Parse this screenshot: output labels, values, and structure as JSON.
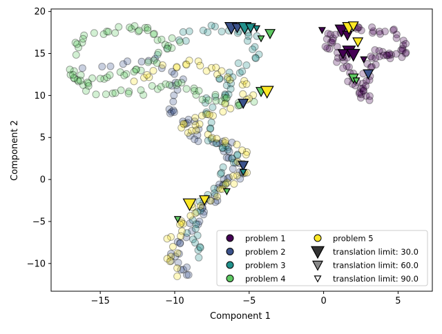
{
  "chart_data": {
    "type": "scatter",
    "title": "",
    "xlabel": "Component 1",
    "ylabel": "Component 2",
    "xlim": [
      -18.3,
      7.3
    ],
    "ylim": [
      -13.3,
      20.3
    ],
    "xticks": [
      -15,
      -10,
      -5,
      0,
      5
    ],
    "yticks": [
      -10,
      -5,
      0,
      5,
      10,
      15,
      20
    ],
    "grid": false,
    "legend_position": "lower-right",
    "colors": {
      "problem 1": "#440154",
      "problem 2": "#3b528b",
      "problem 3": "#21918c",
      "problem 4": "#5ec962",
      "problem 5": "#fde725",
      "triangle": "#333333"
    },
    "legend": [
      {
        "label": "problem 1",
        "marker": "circle",
        "color": "#440154"
      },
      {
        "label": "problem 2",
        "marker": "circle",
        "color": "#3b528b"
      },
      {
        "label": "problem 3",
        "marker": "circle",
        "color": "#21918c"
      },
      {
        "label": "problem 4",
        "marker": "circle",
        "color": "#5ec962"
      },
      {
        "label": "problem 5",
        "marker": "circle",
        "color": "#fde725"
      },
      {
        "label": "translation limit: 30.0",
        "marker": "triangle-large",
        "color": "#333333"
      },
      {
        "label": "translation limit: 60.0",
        "marker": "triangle-medium",
        "color": "#888888"
      },
      {
        "label": "translation limit: 90.0",
        "marker": "triangle-small",
        "color": "#ffffff"
      }
    ],
    "series": [
      {
        "name": "problem 1",
        "color": "#440154",
        "path": [
          [
            1.5,
            18
          ],
          [
            3,
            17.8
          ],
          [
            5,
            17.5
          ],
          [
            5.7,
            15.2
          ],
          [
            4.5,
            14.8
          ],
          [
            3.5,
            15.2
          ],
          [
            3.1,
            13.5
          ],
          [
            2.8,
            11
          ],
          [
            2.9,
            9.5
          ],
          [
            2.2,
            11.5
          ],
          [
            1.6,
            13.5
          ],
          [
            0.9,
            14.8
          ],
          [
            0.3,
            16.5
          ],
          [
            0.8,
            17.8
          ]
        ],
        "points_per_segment": 7
      },
      {
        "name": "problem 2",
        "color": "#3b528b",
        "path": [
          [
            -16,
            13
          ],
          [
            -12,
            14.5
          ],
          [
            -9.5,
            12
          ],
          [
            -10.5,
            8.2
          ],
          [
            -9,
            7
          ],
          [
            -8.5,
            5
          ],
          [
            -6.5,
            4.5
          ],
          [
            -6,
            2.5
          ],
          [
            -5.5,
            0.5
          ],
          [
            -7,
            -0.5
          ],
          [
            -7.5,
            -2.5
          ],
          [
            -8.5,
            -4.5
          ],
          [
            -9.5,
            -7
          ],
          [
            -10,
            -10
          ],
          [
            -9,
            -11.5
          ]
        ],
        "points_per_segment": 6
      },
      {
        "name": "problem 3",
        "color": "#21918c",
        "path": [
          [
            -11,
            15
          ],
          [
            -9,
            17.5
          ],
          [
            -7,
            18
          ],
          [
            -5,
            17.5
          ],
          [
            -4.5,
            15
          ],
          [
            -5.5,
            13
          ],
          [
            -7,
            12
          ],
          [
            -6,
            10.5
          ],
          [
            -7.5,
            9.5
          ],
          [
            -8,
            6.5
          ],
          [
            -7,
            4
          ],
          [
            -6,
            3
          ],
          [
            -6.5,
            0.5
          ],
          [
            -8,
            -2
          ],
          [
            -8.5,
            -5
          ],
          [
            -9,
            -7
          ],
          [
            -8,
            -9
          ]
        ],
        "points_per_segment": 5
      },
      {
        "name": "problem 4",
        "color": "#5ec962",
        "path": [
          [
            -17,
            15
          ],
          [
            -15.5,
            17.5
          ],
          [
            -13,
            18
          ],
          [
            -11.5,
            17.5
          ],
          [
            -10,
            16
          ],
          [
            -12,
            13.5
          ],
          [
            -14,
            12.5
          ],
          [
            -16.5,
            11.5
          ],
          [
            -17,
            13
          ],
          [
            -15,
            10
          ],
          [
            -12,
            10.5
          ],
          [
            -10,
            11.5
          ],
          [
            -8,
            10
          ],
          [
            -6.5,
            9.5
          ],
          [
            -5,
            9
          ]
        ],
        "points_per_segment": 7
      },
      {
        "name": "problem 5",
        "color": "#fde725",
        "path": [
          [
            -13,
            12
          ],
          [
            -11,
            13
          ],
          [
            -9,
            14
          ],
          [
            -7.5,
            13
          ],
          [
            -6,
            12
          ],
          [
            -5,
            10
          ],
          [
            -7,
            8
          ],
          [
            -8.5,
            7
          ],
          [
            -9.5,
            6
          ],
          [
            -7,
            5
          ],
          [
            -5.5,
            3.5
          ],
          [
            -5.3,
            1
          ],
          [
            -6.5,
            -0.5
          ],
          [
            -8,
            -2.5
          ],
          [
            -9,
            -4.5
          ],
          [
            -10,
            -6
          ],
          [
            -10.2,
            -9
          ],
          [
            -10,
            -11.5
          ]
        ],
        "points_per_segment": 5
      }
    ],
    "triangles": [
      {
        "x": -6.2,
        "y": 18.1,
        "problem": "problem 2",
        "limit": 30.0
      },
      {
        "x": -5.8,
        "y": 18.1,
        "problem": "problem 2",
        "limit": 60.0
      },
      {
        "x": -5.3,
        "y": 18.1,
        "problem": "problem 3",
        "limit": 30.0
      },
      {
        "x": -4.9,
        "y": 18.1,
        "problem": "problem 3",
        "limit": 60.0
      },
      {
        "x": -4.5,
        "y": 18.0,
        "problem": "problem 3",
        "limit": 90.0
      },
      {
        "x": -3.6,
        "y": 17.4,
        "problem": "problem 4",
        "limit": 60.0
      },
      {
        "x": -4.2,
        "y": 16.8,
        "problem": "problem 4",
        "limit": 90.0
      },
      {
        "x": -4.2,
        "y": 10.5,
        "problem": "problem 4",
        "limit": 60.0
      },
      {
        "x": -3.8,
        "y": 10.5,
        "problem": "problem 5",
        "limit": 30.0
      },
      {
        "x": -5.4,
        "y": 9.1,
        "problem": "problem 2",
        "limit": 60.0
      },
      {
        "x": -5.4,
        "y": 1.7,
        "problem": "problem 2",
        "limit": 60.0
      },
      {
        "x": -5.4,
        "y": 0.9,
        "problem": "problem 3",
        "limit": 90.0
      },
      {
        "x": -6.5,
        "y": -1.4,
        "problem": "problem 4",
        "limit": 90.0
      },
      {
        "x": -8.0,
        "y": -2.4,
        "problem": "problem 5",
        "limit": 60.0
      },
      {
        "x": -9.0,
        "y": -2.9,
        "problem": "problem 5",
        "limit": 30.0
      },
      {
        "x": -9.8,
        "y": -4.7,
        "problem": "problem 4",
        "limit": 90.0
      },
      {
        "x": -0.1,
        "y": 17.8,
        "problem": "problem 1",
        "limit": 90.0
      },
      {
        "x": 1.2,
        "y": 17.8,
        "problem": "problem 1",
        "limit": 30.0
      },
      {
        "x": 1.6,
        "y": 17.2,
        "problem": "problem 1",
        "limit": 60.0
      },
      {
        "x": 1.7,
        "y": 18.1,
        "problem": "problem 5",
        "limit": 30.0
      },
      {
        "x": 2.0,
        "y": 18.3,
        "problem": "problem 5",
        "limit": 60.0
      },
      {
        "x": 2.3,
        "y": 16.4,
        "problem": "problem 5",
        "limit": 60.0
      },
      {
        "x": 1.7,
        "y": 15.3,
        "problem": "problem 1",
        "limit": 30.0
      },
      {
        "x": 1.3,
        "y": 15.0,
        "problem": "problem 1",
        "limit": 60.0
      },
      {
        "x": 2.0,
        "y": 14.9,
        "problem": "problem 1",
        "limit": 30.0
      },
      {
        "x": 2.7,
        "y": 14.3,
        "problem": "problem 1",
        "limit": 90.0
      },
      {
        "x": 3.0,
        "y": 12.6,
        "problem": "problem 2",
        "limit": 60.0
      },
      {
        "x": 2.0,
        "y": 12.1,
        "problem": "problem 4",
        "limit": 60.0
      },
      {
        "x": 2.2,
        "y": 11.8,
        "problem": "problem 4",
        "limit": 90.0
      }
    ]
  }
}
